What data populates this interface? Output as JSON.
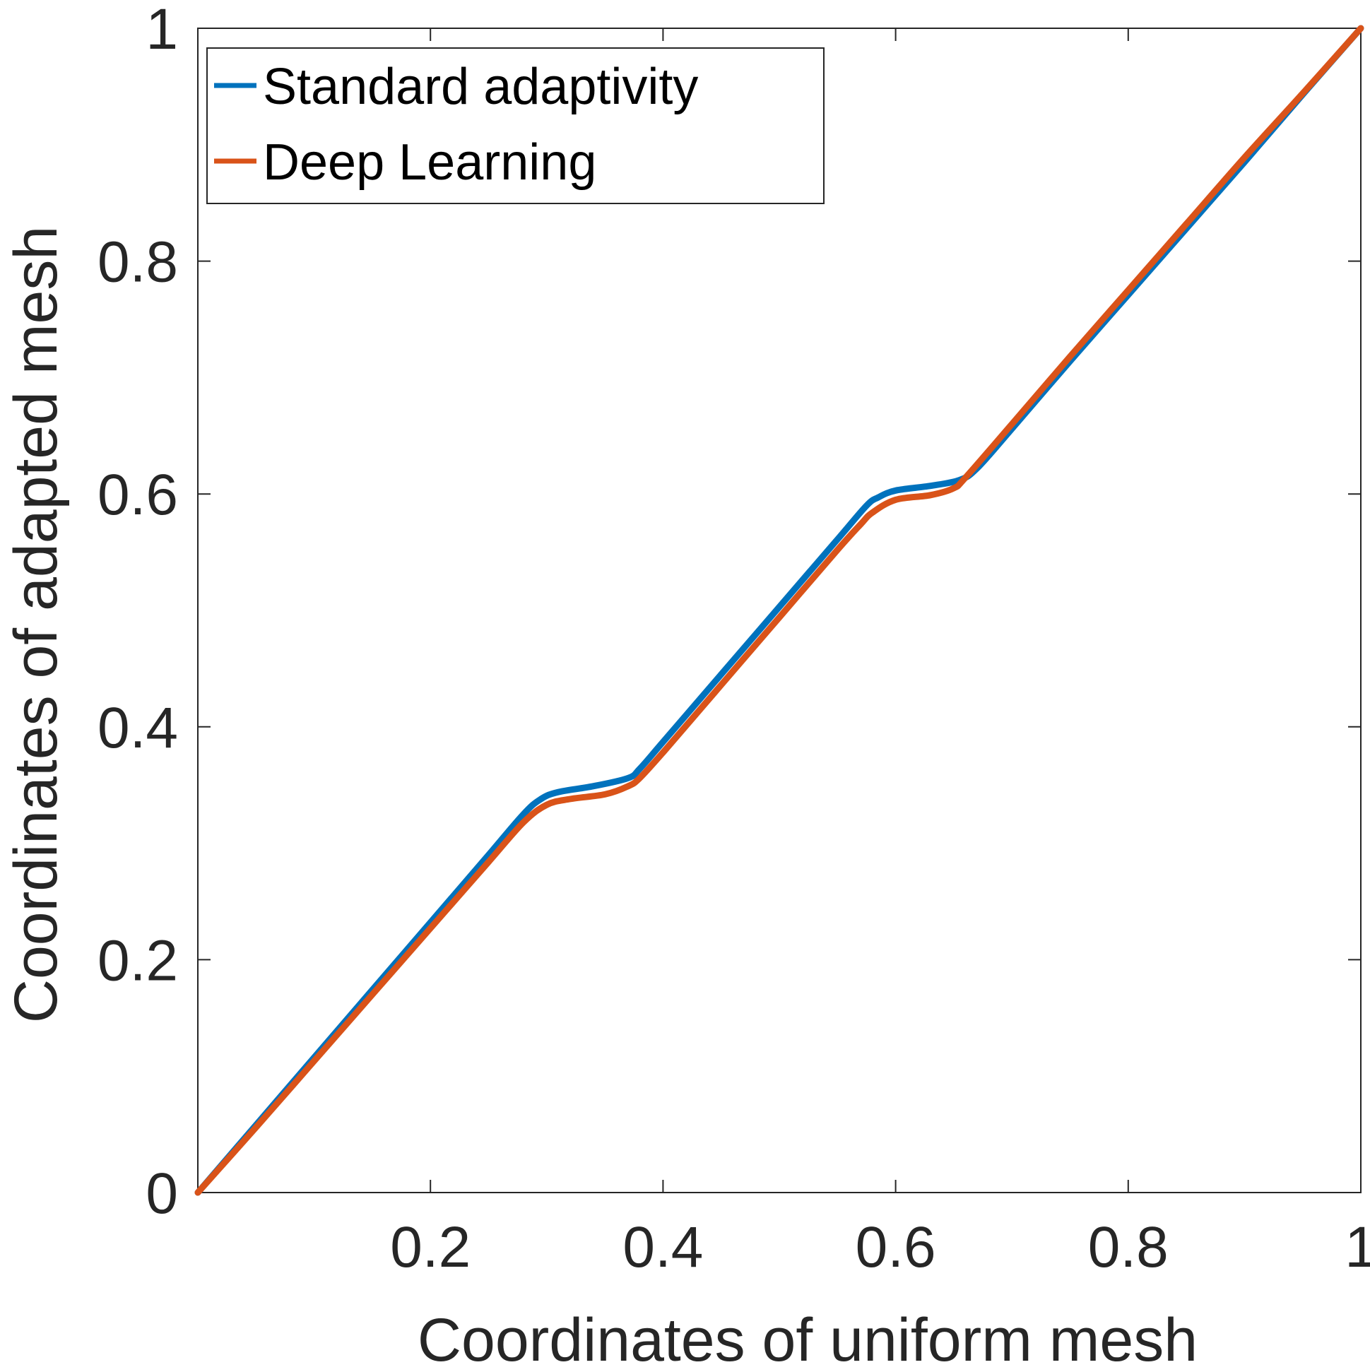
{
  "chart_data": {
    "type": "line",
    "title": "",
    "xlabel": "Coordinates of uniform mesh",
    "ylabel": "Coordinates of adapted mesh",
    "xlim": [
      0,
      1
    ],
    "ylim": [
      0,
      1
    ],
    "x_ticks": [
      0.2,
      0.4,
      0.6,
      0.8,
      1
    ],
    "x_tick_labels": [
      "0.2",
      "0.4",
      "0.6",
      "0.8",
      "1"
    ],
    "y_ticks": [
      0,
      0.2,
      0.4,
      0.6,
      0.8,
      1
    ],
    "y_tick_labels": [
      "0",
      "0.2",
      "0.4",
      "0.6",
      "0.8",
      "1"
    ],
    "grid": false,
    "legend_position": "top-left",
    "series": [
      {
        "name": "Standard adaptivity",
        "color": "#0072BD",
        "x": [
          0,
          0.05,
          0.1,
          0.15,
          0.2,
          0.25,
          0.28,
          0.295,
          0.31,
          0.34,
          0.37,
          0.38,
          0.4,
          0.45,
          0.5,
          0.55,
          0.575,
          0.585,
          0.6,
          0.63,
          0.655,
          0.67,
          0.7,
          0.75,
          0.8,
          0.85,
          0.9,
          0.95,
          1.0
        ],
        "y": [
          0,
          0.058,
          0.116,
          0.174,
          0.232,
          0.29,
          0.325,
          0.338,
          0.344,
          0.349,
          0.356,
          0.364,
          0.387,
          0.445,
          0.503,
          0.561,
          0.59,
          0.597,
          0.603,
          0.607,
          0.612,
          0.622,
          0.656,
          0.714,
          0.771,
          0.828,
          0.885,
          0.943,
          1.0
        ]
      },
      {
        "name": "Deep Learning",
        "color": "#D95319",
        "x": [
          0,
          0.05,
          0.1,
          0.15,
          0.2,
          0.25,
          0.28,
          0.3,
          0.32,
          0.35,
          0.37,
          0.38,
          0.4,
          0.45,
          0.5,
          0.55,
          0.57,
          0.58,
          0.6,
          0.63,
          0.65,
          0.66,
          0.7,
          0.75,
          0.8,
          0.85,
          0.9,
          0.95,
          1.0
        ],
        "y": [
          0,
          0.056,
          0.113,
          0.17,
          0.227,
          0.284,
          0.318,
          0.333,
          0.338,
          0.342,
          0.349,
          0.356,
          0.378,
          0.436,
          0.494,
          0.552,
          0.574,
          0.584,
          0.595,
          0.599,
          0.605,
          0.614,
          0.66,
          0.718,
          0.775,
          0.832,
          0.889,
          0.944,
          1.0
        ]
      }
    ]
  }
}
